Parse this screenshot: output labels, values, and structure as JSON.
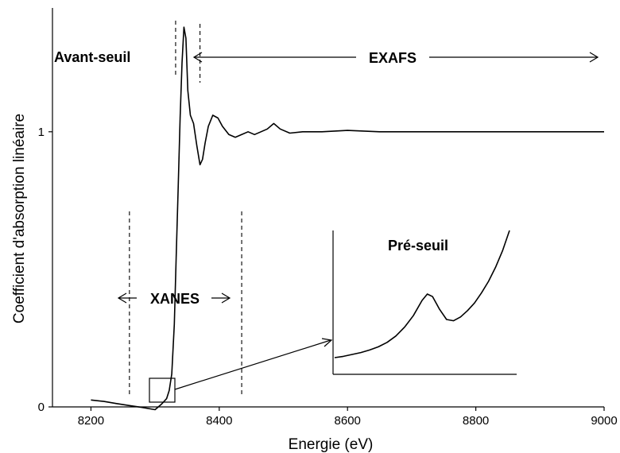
{
  "chart_data": {
    "type": "line",
    "xlabel": "Energie (eV)",
    "ylabel": "Coefficient d'absorption linéaire",
    "xlim": [
      8140,
      9000
    ],
    "ylim": [
      0,
      1.45
    ],
    "xticks": [
      8200,
      8400,
      8600,
      8800,
      9000
    ],
    "yticks": [
      0,
      1
    ],
    "series": [
      {
        "x": [
          8200,
          8220,
          8240,
          8260,
          8280,
          8300,
          8310,
          8318,
          8322,
          8326,
          8330,
          8333,
          8336,
          8339,
          8342,
          8345,
          8348,
          8351,
          8355,
          8360,
          8365,
          8370,
          8374,
          8378,
          8383,
          8390,
          8398,
          8405,
          8415,
          8425,
          8435,
          8445,
          8455,
          8465,
          8475,
          8485,
          8495,
          8510,
          8530,
          8560,
          8600,
          8650,
          8700,
          8800,
          8900,
          9000
        ],
        "y": [
          0.025,
          0.02,
          0.012,
          0.005,
          -0.002,
          -0.01,
          0.01,
          0.03,
          0.06,
          0.12,
          0.3,
          0.55,
          0.8,
          1.05,
          1.25,
          1.38,
          1.34,
          1.15,
          1.06,
          1.03,
          0.95,
          0.88,
          0.9,
          0.96,
          1.02,
          1.06,
          1.05,
          1.02,
          0.99,
          0.98,
          0.99,
          1.0,
          0.99,
          1.0,
          1.01,
          1.03,
          1.01,
          0.995,
          1.0,
          1.0,
          1.005,
          1.0,
          1.0,
          1.0,
          1.0,
          1.0
        ]
      }
    ],
    "annotations": {
      "pre_edge_label": "Avant-seuil",
      "exafs_label": "EXAFS",
      "xanes_label": "XANES",
      "preseuil_label": "Pré-seuil"
    },
    "regions": {
      "avant_seuil_end": 8332,
      "exafs": [
        8370,
        9000
      ],
      "xanes": [
        8260,
        8435
      ]
    },
    "inset": {
      "title": "Pré-seuil",
      "zoom_box_x": [
        8315,
        8337
      ],
      "zoom_box_y": [
        0.0,
        0.1
      ],
      "curve": {
        "x": [
          0,
          0.05,
          0.1,
          0.15,
          0.2,
          0.25,
          0.3,
          0.35,
          0.4,
          0.45,
          0.5,
          0.53,
          0.56,
          0.6,
          0.64,
          0.68,
          0.72,
          0.76,
          0.8,
          0.84,
          0.88,
          0.92,
          0.96,
          1.0
        ],
        "y": [
          0.0,
          0.01,
          0.025,
          0.04,
          0.06,
          0.085,
          0.12,
          0.17,
          0.24,
          0.33,
          0.45,
          0.5,
          0.48,
          0.38,
          0.3,
          0.29,
          0.32,
          0.37,
          0.43,
          0.51,
          0.6,
          0.71,
          0.84,
          1.0
        ]
      }
    },
    "grid": false,
    "legend": "none"
  }
}
